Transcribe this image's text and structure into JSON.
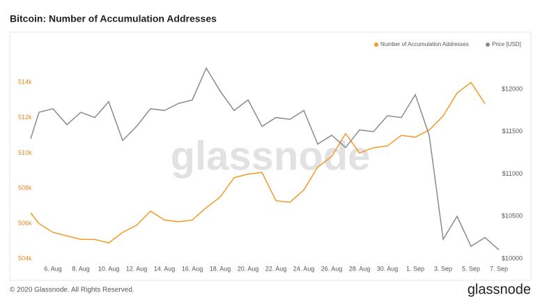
{
  "chart_data": {
    "type": "line",
    "title": "Bitcoin: Number of Accumulation Addresses",
    "watermark": "glassnode",
    "footer": "© 2020 Glassnode. All Rights Reserved.",
    "logo": "glassnode",
    "categories": [
      null,
      null,
      "6. Aug",
      null,
      "8. Aug",
      null,
      "10. Aug",
      null,
      "12. Aug",
      null,
      "14. Aug",
      null,
      "16. Aug",
      null,
      "18. Aug",
      null,
      "20. Aug",
      null,
      "22. Aug",
      null,
      "24. Aug",
      null,
      "26. Aug",
      null,
      "28. Aug",
      null,
      "30. Aug",
      null,
      "1. Sep",
      null,
      "3. Sep",
      null,
      "5. Sep",
      null,
      "7. Sep"
    ],
    "series": [
      {
        "name": "Number of Accumulation Addresses",
        "color": "#f09a25",
        "axis": "y",
        "values": [
          506600,
          506000,
          505500,
          505300,
          505100,
          505100,
          504900,
          505500,
          505900,
          506700,
          506200,
          506100,
          506200,
          506900,
          507500,
          508600,
          508800,
          508900,
          507300,
          507200,
          507900,
          509200,
          509800,
          511100,
          510000,
          510300,
          510400,
          511000,
          510900,
          511300,
          512100,
          513400,
          514000,
          512800,
          null
        ]
      },
      {
        "name": "Price [USD]",
        "color": "#8a8a8a",
        "axis": "y2",
        "values": [
          11416,
          11728,
          11770,
          11582,
          11728,
          11666,
          11853,
          11395,
          11562,
          11770,
          11749,
          11832,
          11874,
          12249,
          11978,
          11749,
          11874,
          11562,
          11666,
          11645,
          11749,
          11353,
          11457,
          11312,
          11520,
          11499,
          11687,
          11666,
          11936,
          11457,
          10229,
          10500,
          10146,
          10250,
          10104
        ]
      }
    ],
    "ylim": [
      503650,
      516700
    ],
    "yticks": [
      {
        "value": 504000,
        "label": "504k"
      },
      {
        "value": 506000,
        "label": "506k"
      },
      {
        "value": 508000,
        "label": "508k"
      },
      {
        "value": 510000,
        "label": "510k"
      },
      {
        "value": 512000,
        "label": "512k"
      },
      {
        "value": 514000,
        "label": "514k"
      }
    ],
    "y2lim": [
      9926,
      12642
    ],
    "y2ticks": [
      {
        "value": 10000,
        "label": "$10000"
      },
      {
        "value": 10500,
        "label": "$10500"
      },
      {
        "value": 11000,
        "label": "$11000"
      },
      {
        "value": 11500,
        "label": "$11500"
      },
      {
        "value": 12000,
        "label": "$12000"
      }
    ],
    "legend": "top-right"
  }
}
